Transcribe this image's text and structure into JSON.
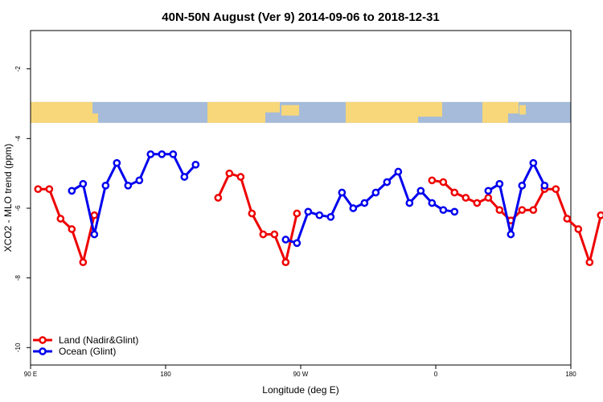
{
  "chart_data": {
    "type": "line",
    "title": "40N-50N August (Ver 9)   2014-09-06 to 2018-12-31",
    "xlabel": "Longitude (deg E)",
    "ylabel": "XCO2 - MLO trend (ppm)",
    "xlim": [
      90,
      450
    ],
    "ylim": [
      -10.5,
      -0.9
    ],
    "x_ticks": [
      {
        "value": 90,
        "label": "90 E"
      },
      {
        "value": 180,
        "label": "180"
      },
      {
        "value": 270,
        "label": "90 W"
      },
      {
        "value": 360,
        "label": "0"
      },
      {
        "value": 450,
        "label": "180"
      }
    ],
    "y_ticks": [
      -2,
      -4,
      -6,
      -8,
      -10
    ],
    "grid": false,
    "legend_position": "bottom-left",
    "map_strip": {
      "ymin": -3.55,
      "ymax": -2.95,
      "ocean_color": "#a5bbd9",
      "land_color": "#f7d77a"
    },
    "series": [
      {
        "name": "Land (Nadir&Glint)",
        "color": "#ee0000",
        "segments": [
          [
            [
              95,
              -5.45
            ],
            [
              102.5,
              -5.45
            ],
            [
              110,
              -6.3
            ],
            [
              117.5,
              -6.6
            ],
            [
              125,
              -7.55
            ],
            [
              132.5,
              -6.2
            ]
          ],
          [
            [
              215,
              -5.7
            ],
            [
              222.5,
              -5.0
            ],
            [
              230,
              -5.1
            ],
            [
              237.5,
              -6.15
            ],
            [
              245,
              -6.75
            ],
            [
              252.5,
              -6.75
            ],
            [
              260,
              -7.55
            ],
            [
              267.5,
              -6.15
            ]
          ],
          [
            [
              357.5,
              -5.2
            ],
            [
              365,
              -5.25
            ],
            [
              372.5,
              -5.55
            ],
            [
              380,
              -5.7
            ],
            [
              387.5,
              -5.85
            ],
            [
              395,
              -5.7
            ],
            [
              402.5,
              -6.05
            ],
            [
              410,
              -6.35
            ],
            [
              417.5,
              -6.05
            ],
            [
              425,
              -6.05
            ],
            [
              432.5,
              -5.45
            ],
            [
              440,
              -5.45
            ],
            [
              447.5,
              -6.3
            ],
            [
              455,
              -6.6
            ],
            [
              462.5,
              -7.55
            ],
            [
              470,
              -6.2
            ]
          ]
        ]
      },
      {
        "name": "Ocean (Glint)",
        "color": "#0000ee",
        "segments": [
          [
            [
              117.5,
              -5.5
            ],
            [
              125,
              -5.3
            ],
            [
              132.5,
              -6.75
            ],
            [
              140,
              -5.35
            ],
            [
              147.5,
              -4.7
            ],
            [
              155,
              -5.35
            ],
            [
              162.5,
              -5.2
            ],
            [
              170,
              -4.45
            ],
            [
              177.5,
              -4.45
            ],
            [
              185,
              -4.45
            ],
            [
              192.5,
              -5.1
            ],
            [
              200,
              -4.75
            ]
          ],
          [
            [
              260,
              -6.9
            ],
            [
              267.5,
              -7.0
            ],
            [
              275,
              -6.1
            ],
            [
              282.5,
              -6.2
            ],
            [
              290,
              -6.25
            ],
            [
              297.5,
              -5.55
            ],
            [
              305,
              -6.0
            ],
            [
              312.5,
              -5.85
            ],
            [
              320,
              -5.55
            ],
            [
              327.5,
              -5.25
            ],
            [
              335,
              -4.95
            ],
            [
              342.5,
              -5.85
            ],
            [
              350,
              -5.5
            ],
            [
              357.5,
              -5.85
            ],
            [
              365,
              -6.05
            ],
            [
              372.5,
              -6.1
            ]
          ],
          [
            [
              395,
              -5.5
            ],
            [
              402.5,
              -5.3
            ],
            [
              410,
              -6.75
            ],
            [
              417.5,
              -5.35
            ],
            [
              425,
              -4.7
            ],
            [
              432.5,
              -5.35
            ]
          ]
        ]
      }
    ]
  }
}
